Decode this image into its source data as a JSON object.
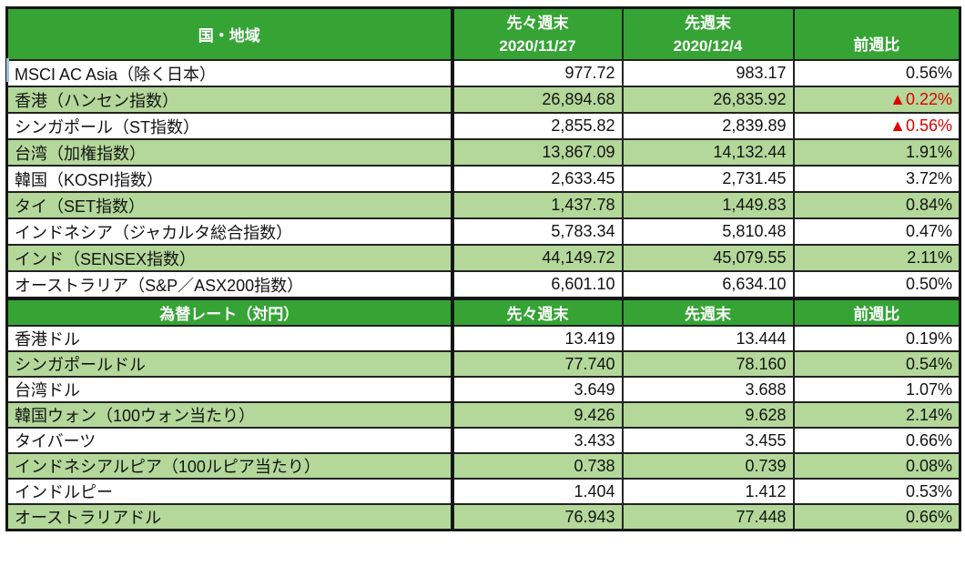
{
  "section1": {
    "title": "国・地域",
    "headers": [
      {
        "line1": "先々週末",
        "line2": "2020/11/27"
      },
      {
        "line1": "先週末",
        "line2": "2020/12/4"
      },
      {
        "label": "前週比"
      }
    ],
    "rows": [
      {
        "label": "MSCI AC Asia（除く日本）",
        "prev2": "977.72",
        "prev": "983.17",
        "change": "0.56%",
        "down": false
      },
      {
        "label": "香港（ハンセン指数）",
        "prev2": "26,894.68",
        "prev": "26,835.92",
        "change": "▲0.22%",
        "down": true
      },
      {
        "label": "シンガポール（ST指数）",
        "prev2": "2,855.82",
        "prev": "2,839.89",
        "change": "▲0.56%",
        "down": true
      },
      {
        "label": "台湾（加権指数）",
        "prev2": "13,867.09",
        "prev": "14,132.44",
        "change": "1.91%",
        "down": false
      },
      {
        "label": "韓国（KOSPI指数）",
        "prev2": "2,633.45",
        "prev": "2,731.45",
        "change": "3.72%",
        "down": false
      },
      {
        "label": "タイ（SET指数）",
        "prev2": "1,437.78",
        "prev": "1,449.83",
        "change": "0.84%",
        "down": false
      },
      {
        "label": "インドネシア（ジャカルタ総合指数）",
        "prev2": "5,783.34",
        "prev": "5,810.48",
        "change": "0.47%",
        "down": false
      },
      {
        "label": "インド（SENSEX指数）",
        "prev2": "44,149.72",
        "prev": "45,079.55",
        "change": "2.11%",
        "down": false
      },
      {
        "label": "オーストラリア（S&P／ASX200指数）",
        "prev2": "6,601.10",
        "prev": "6,634.10",
        "change": "0.50%",
        "down": false
      }
    ]
  },
  "section2": {
    "title": "為替レート（対円）",
    "headers": [
      "先々週末",
      "先週末",
      "前週比"
    ],
    "rows": [
      {
        "label": "香港ドル",
        "prev2": "13.419",
        "prev": "13.444",
        "change": "0.19%",
        "down": false
      },
      {
        "label": "シンガポールドル",
        "prev2": "77.740",
        "prev": "78.160",
        "change": "0.54%",
        "down": false
      },
      {
        "label": "台湾ドル",
        "prev2": "3.649",
        "prev": "3.688",
        "change": "1.07%",
        "down": false
      },
      {
        "label": "韓国ウォン（100ウォン当たり）",
        "prev2": "9.426",
        "prev": "9.628",
        "change": "2.14%",
        "down": false
      },
      {
        "label": "タイバーツ",
        "prev2": "3.433",
        "prev": "3.455",
        "change": "0.66%",
        "down": false
      },
      {
        "label": "インドネシアルピア（100ルピア当たり）",
        "prev2": "0.738",
        "prev": "0.739",
        "change": "0.08%",
        "down": false
      },
      {
        "label": "インドルピー",
        "prev2": "1.404",
        "prev": "1.412",
        "change": "0.53%",
        "down": false
      },
      {
        "label": "オーストラリアドル",
        "prev2": "76.943",
        "prev": "77.448",
        "change": "0.66%",
        "down": false
      }
    ]
  },
  "colors": {
    "header_green": "#35a435",
    "row_alt_green": "#b3d89a",
    "negative_red": "#e00000",
    "grid_black": "#222222",
    "selection_blue": "#9dc3e6"
  }
}
